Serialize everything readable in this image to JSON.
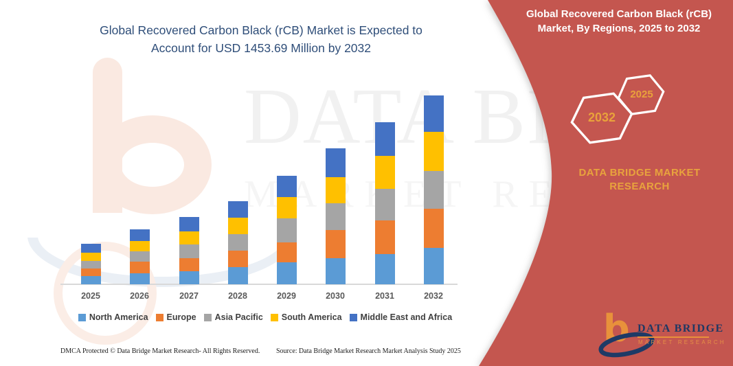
{
  "chart_title": {
    "line1": "Global Recovered Carbon Black (rCB) Market is Expected to",
    "line2": "Account for USD 1453.69 Million by 2032",
    "color": "#2F4E79"
  },
  "right_panel": {
    "bg": "#C4574F",
    "heading_line1": "Global Recovered Carbon Black (rCB)",
    "heading_line2": "Market, By Regions, 2025 to 2032",
    "hexagons": [
      {
        "label": "2032"
      },
      {
        "label": "2025"
      }
    ],
    "brand_text": "DATA BRIDGE MARKET RESEARCH",
    "accent": "#E8A33D"
  },
  "logo": {
    "b": "b",
    "name": "DATA BRIDGE",
    "subtitle": "MARKET RESEARCH",
    "name_color": "#1F3864",
    "accent_color": "#E8913B"
  },
  "watermark": {
    "line1": "DATA BRIDGE",
    "line2": "MARKET RESEARCH"
  },
  "footer": {
    "left": "DMCA Protected © Data Bridge Market Research-  All Rights Reserved.",
    "right": "Source: Data Bridge Market Research  Market Analysis Study 2025"
  },
  "chart_data": {
    "type": "bar",
    "stacked": true,
    "title": "Global Recovered Carbon Black (rCB) Market is Expected to Account for USD 1453.69 Million by 2032",
    "unit": "USD Million",
    "xlabel": "",
    "ylabel": "",
    "ylim": [
      0,
      1500
    ],
    "grid": false,
    "axis_visible": false,
    "legend_position": "bottom",
    "categories": [
      "2025",
      "2026",
      "2027",
      "2028",
      "2029",
      "2030",
      "2031",
      "2032"
    ],
    "series": [
      {
        "name": "North America",
        "color": "#5B9BD5",
        "values": [
          63,
          85,
          100,
          132,
          169,
          201,
          233,
          280
        ]
      },
      {
        "name": "Europe",
        "color": "#ED7D31",
        "values": [
          58,
          90,
          100,
          127,
          153,
          217,
          259,
          301
        ]
      },
      {
        "name": "Asia Pacific",
        "color": "#A5A5A5",
        "values": [
          58,
          79,
          106,
          127,
          185,
          206,
          243,
          291
        ]
      },
      {
        "name": "South America",
        "color": "#FFC000",
        "values": [
          63,
          79,
          100,
          127,
          164,
          201,
          254,
          301.69
        ]
      },
      {
        "name": "Middle East and Africa",
        "color": "#4472C4",
        "values": [
          69,
          90,
          111,
          127,
          164,
          222,
          259,
          280
        ]
      }
    ],
    "totals": [
      311,
      423,
      517,
      640,
      835,
      1047,
      1248,
      1453.69
    ],
    "annotations": [
      "USD 1453.69 Million by 2032"
    ]
  }
}
